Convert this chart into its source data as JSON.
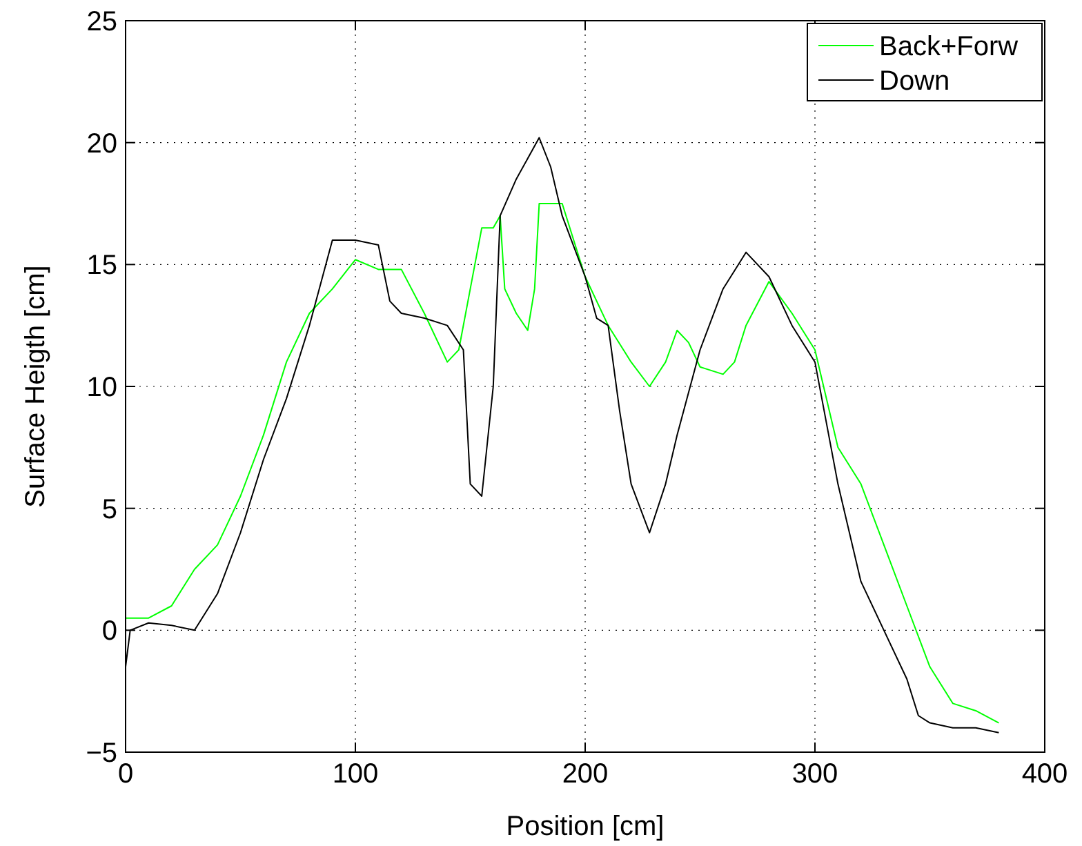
{
  "chart_data": {
    "type": "line",
    "xlabel": "Position [cm]",
    "ylabel": "Surface Heigth [cm]",
    "xlim": [
      0,
      400
    ],
    "ylim": [
      -5,
      25
    ],
    "xticks": [
      0,
      100,
      200,
      300,
      400
    ],
    "yticks": [
      -5,
      0,
      5,
      10,
      15,
      20,
      25
    ],
    "grid": true,
    "legend": "top right",
    "series": [
      {
        "name": "Back+Forw",
        "color": "#00ff00",
        "x": [
          0,
          10,
          20,
          30,
          40,
          50,
          60,
          70,
          80,
          90,
          100,
          110,
          120,
          130,
          140,
          145,
          150,
          155,
          160,
          163,
          165,
          170,
          175,
          178,
          180,
          190,
          200,
          210,
          220,
          228,
          235,
          240,
          245,
          250,
          260,
          265,
          270,
          280,
          290,
          300,
          310,
          320,
          330,
          340,
          350,
          360,
          370,
          380
        ],
        "values": [
          0.5,
          0.5,
          1,
          2.5,
          3.5,
          5.5,
          8,
          11,
          13,
          14,
          15.2,
          14.8,
          14.8,
          13,
          11,
          11.5,
          14,
          16.5,
          16.5,
          17,
          14,
          13,
          12.3,
          14,
          17.5,
          17.5,
          14.5,
          12.5,
          11,
          10,
          11,
          12.3,
          11.8,
          10.8,
          10.5,
          11,
          12.5,
          14.3,
          13,
          11.5,
          7.5,
          6,
          3.5,
          1,
          -1.5,
          -3,
          -3.3,
          -3.8
        ]
      },
      {
        "name": "Down",
        "color": "#000000",
        "x": [
          0,
          2,
          10,
          20,
          30,
          40,
          50,
          60,
          70,
          80,
          90,
          100,
          110,
          115,
          120,
          130,
          140,
          147,
          150,
          155,
          160,
          163,
          170,
          180,
          185,
          190,
          200,
          205,
          210,
          215,
          220,
          228,
          235,
          240,
          250,
          260,
          270,
          280,
          290,
          300,
          310,
          320,
          330,
          340,
          345,
          350,
          360,
          370,
          380
        ],
        "values": [
          -1.5,
          0,
          0.3,
          0.2,
          0,
          1.5,
          4,
          7,
          9.5,
          12.5,
          16,
          16,
          15.8,
          13.5,
          13,
          12.8,
          12.5,
          11.5,
          6,
          5.5,
          10,
          17,
          18.5,
          20.2,
          19,
          17,
          14.5,
          12.8,
          12.5,
          9,
          6,
          4,
          6,
          8,
          11.5,
          14,
          15.5,
          14.5,
          12.5,
          11,
          6,
          2,
          0,
          -2,
          -3.5,
          -3.8,
          -4,
          -4,
          -4.2
        ]
      }
    ]
  }
}
